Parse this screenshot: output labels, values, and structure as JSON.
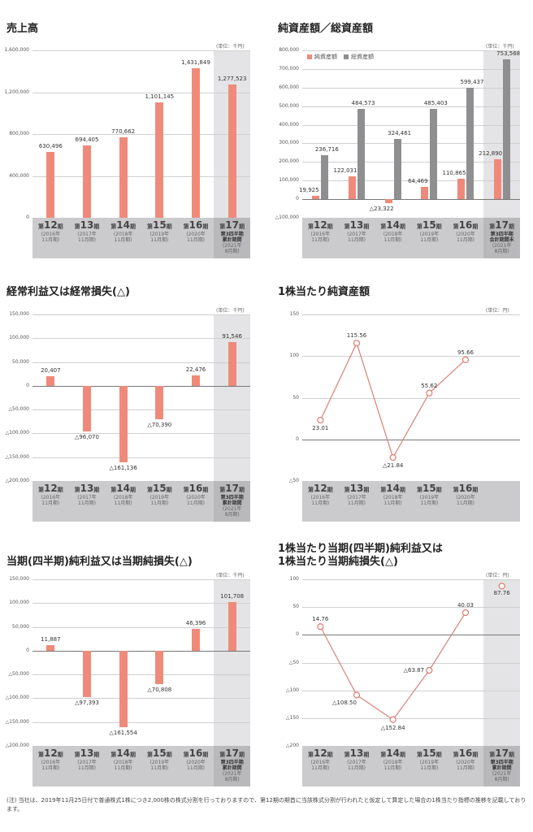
{
  "unit_thousand_yen": "(単位：千円)",
  "unit_yen": "(単位：円)",
  "periods": [
    {
      "p": "第",
      "n": "12",
      "k": "期",
      "y": "(2016年",
      "m": "11月期)"
    },
    {
      "p": "第",
      "n": "13",
      "k": "期",
      "y": "(2017年",
      "m": "11月期)"
    },
    {
      "p": "第",
      "n": "14",
      "k": "期",
      "y": "(2018年",
      "m": "11月期)"
    },
    {
      "p": "第",
      "n": "15",
      "k": "期",
      "y": "(2019年",
      "m": "11月期)"
    },
    {
      "p": "第",
      "n": "16",
      "k": "期",
      "y": "(2020年",
      "m": "11月期)"
    }
  ],
  "period17": {
    "p": "第",
    "n": "17",
    "k": "期",
    "q1": "第3四半期",
    "q2": "累計期間",
    "q2_assets": "会計期間末",
    "y": "(2021年",
    "m": "8月期)"
  },
  "chart_data": [
    {
      "type": "bar",
      "title": "売上高",
      "unit": "(単位：千円)",
      "categories": [
        "第12期 (2016年11月期)",
        "第13期 (2017年11月期)",
        "第14期 (2018年11月期)",
        "第15期 (2019年11月期)",
        "第16期 (2020年11月期)",
        "第17期 第3四半期累計期間 (2021年8月期)"
      ],
      "values": [
        630496,
        694405,
        770662,
        1101145,
        1431849,
        1277523
      ],
      "labels": [
        "630,496",
        "694,405",
        "770,662",
        "1,101,145",
        "1,431,849",
        "1,277,523"
      ],
      "yticks": [
        "1,600,000",
        "1,200,000",
        "800,000",
        "400,000",
        "0"
      ],
      "ylim": [
        0,
        1600000
      ],
      "grid": true
    },
    {
      "type": "bar",
      "title": "純資産額／総資産額",
      "unit": "(単位：千円)",
      "legend": [
        "純資産額",
        "総資産額"
      ],
      "categories": [
        "第12期 (2016年11月期)",
        "第13期 (2017年11月期)",
        "第14期 (2018年11月期)",
        "第15期 (2019年11月期)",
        "第16期 (2020年11月期)",
        "第17期 第3四半期会計期間末 (2021年8月期)"
      ],
      "series": [
        {
          "name": "純資産額",
          "color": "#ef8a7a",
          "values": [
            19925,
            122031,
            -23322,
            64469,
            110865,
            212890
          ],
          "labels": [
            "19,925",
            "122,031",
            "△23,322",
            "64,469",
            "110,865",
            "212,890"
          ]
        },
        {
          "name": "総資産額",
          "color": "#8f8f91",
          "values": [
            236716,
            484573,
            324461,
            485403,
            599437,
            753568
          ],
          "labels": [
            "236,716",
            "484,573",
            "324,461",
            "485,403",
            "599,437",
            "753,568"
          ]
        }
      ],
      "yticks": [
        "800,000",
        "700,000",
        "600,000",
        "500,000",
        "400,000",
        "300,000",
        "200,000",
        "100,000",
        "0",
        "△100,000"
      ],
      "ylim": [
        -100000,
        800000
      ],
      "grid": true,
      "legend_position": "top-left"
    },
    {
      "type": "bar",
      "title": "経常利益又は経常損失(△)",
      "unit": "(単位：千円)",
      "categories": [
        "第12期 (2016年11月期)",
        "第13期 (2017年11月期)",
        "第14期 (2018年11月期)",
        "第15期 (2019年11月期)",
        "第16期 (2020年11月期)",
        "第17期 第3四半期累計期間 (2021年8月期)"
      ],
      "values": [
        20407,
        -96070,
        -161136,
        -70390,
        22476,
        91546
      ],
      "labels": [
        "20,407",
        "△96,070",
        "△161,136",
        "△70,390",
        "22,476",
        "91,546"
      ],
      "yticks": [
        "150,000",
        "100,000",
        "50,000",
        "0",
        "△50,000",
        "△100,000",
        "△150,000",
        "△200,000"
      ],
      "ylim": [
        -200000,
        150000
      ],
      "grid": true
    },
    {
      "type": "line",
      "title": "1株当たり純資産額",
      "unit": "(単位：円)",
      "categories": [
        "第12期 (2016年11月期)",
        "第13期 (2017年11月期)",
        "第14期 (2018年11月期)",
        "第15期 (2019年11月期)",
        "第16期 (2020年11月期)"
      ],
      "values": [
        23.01,
        115.56,
        -21.84,
        55.62,
        95.66
      ],
      "labels": [
        "23.01",
        "115.56",
        "△21.84",
        "55.62",
        "95.66"
      ],
      "yticks": [
        "150",
        "100",
        "50",
        "0",
        "△50"
      ],
      "ylim": [
        -50,
        150
      ],
      "grid": true
    },
    {
      "type": "bar",
      "title": "当期(四半期)純利益又は当期純損失(△)",
      "unit": "(単位：千円)",
      "categories": [
        "第12期 (2016年11月期)",
        "第13期 (2017年11月期)",
        "第14期 (2018年11月期)",
        "第15期 (2019年11月期)",
        "第16期 (2020年11月期)",
        "第17期 第3四半期累計期間 (2021年8月期)"
      ],
      "values": [
        11887,
        -97393,
        -161554,
        -70808,
        46396,
        101708
      ],
      "labels": [
        "11,887",
        "△97,393",
        "△161,554",
        "△70,808",
        "46,396",
        "101,708"
      ],
      "yticks": [
        "150,000",
        "100,000",
        "50,000",
        "0",
        "△50,000",
        "△100,000",
        "△150,000",
        "△200,000"
      ],
      "ylim": [
        -200000,
        150000
      ],
      "grid": true
    },
    {
      "type": "line",
      "title": "1株当たり当期(四半期)純利益又は 1株当たり当期純損失(△)",
      "title_line1": "1株当たり当期(四半期)純利益又は",
      "title_line2": "1株当たり当期純損失(△)",
      "unit": "(単位：円)",
      "categories": [
        "第12期 (2016年11月期)",
        "第13期 (2017年11月期)",
        "第14期 (2018年11月期)",
        "第15期 (2019年11月期)",
        "第16期 (2020年11月期)",
        "第17期 第3四半期累計期間 (2021年8月期)"
      ],
      "values": [
        14.76,
        -108.5,
        -152.84,
        -63.87,
        40.03,
        87.76
      ],
      "labels": [
        "14.76",
        "△108.50",
        "△152.84",
        "△63.87",
        "40.03",
        "87.76"
      ],
      "yticks": [
        "100",
        "50",
        "0",
        "△50",
        "△100",
        "△150",
        "△200"
      ],
      "ylim": [
        -200,
        100
      ],
      "grid": true
    }
  ],
  "footnote": "(注) 当社は、2019年11月25日付で普通株式1株につき2,000株の株式分割を行っておりますので、第12期の期首に当該株式分割が行われたと仮定して算定した場合の1株当たり指標の推移を記載しております。"
}
